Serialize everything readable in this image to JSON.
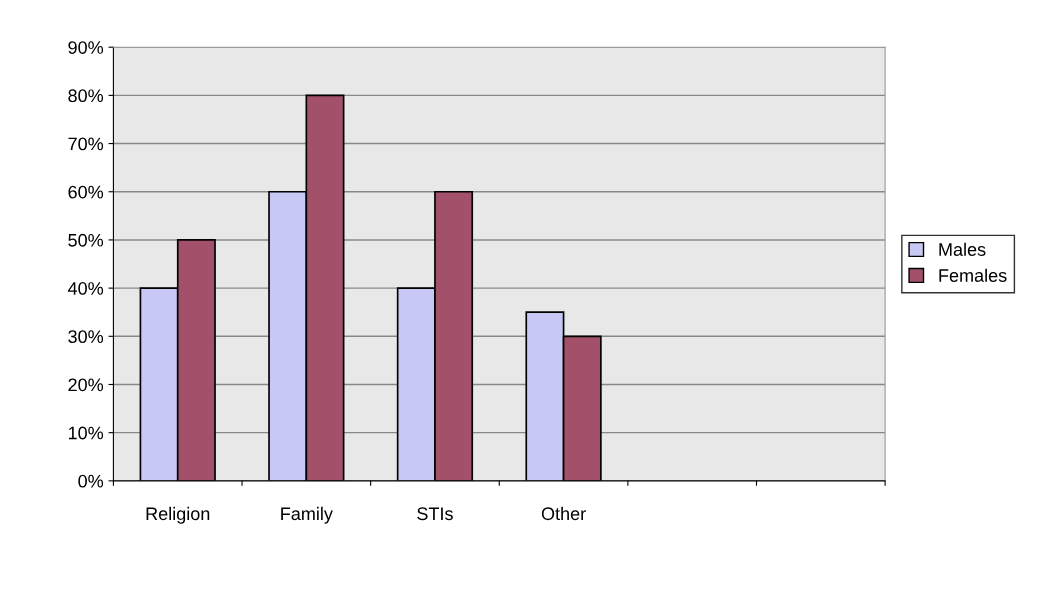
{
  "chart_data": {
    "type": "bar",
    "categories": [
      "Religion",
      "Family",
      "STIs",
      "Other",
      null,
      null
    ],
    "series": [
      {
        "name": "Males",
        "color": "#c8c8f4",
        "values": [
          40,
          60,
          40,
          35,
          null,
          null
        ]
      },
      {
        "name": "Females",
        "color": "#a3506a",
        "values": [
          50,
          80,
          60,
          30,
          null,
          null
        ]
      }
    ],
    "ylim": [
      0,
      90
    ],
    "yticks": [
      {
        "value": 0,
        "label": "0%"
      },
      {
        "value": 10,
        "label": "10%"
      },
      {
        "value": 20,
        "label": "20%"
      },
      {
        "value": 30,
        "label": "30%"
      },
      {
        "value": 40,
        "label": "40%"
      },
      {
        "value": 50,
        "label": "50%"
      },
      {
        "value": 60,
        "label": "60%"
      },
      {
        "value": 70,
        "label": "70%"
      },
      {
        "value": 80,
        "label": "80%"
      },
      {
        "value": 90,
        "label": "90%"
      }
    ],
    "grid": "y",
    "legend": "right"
  }
}
